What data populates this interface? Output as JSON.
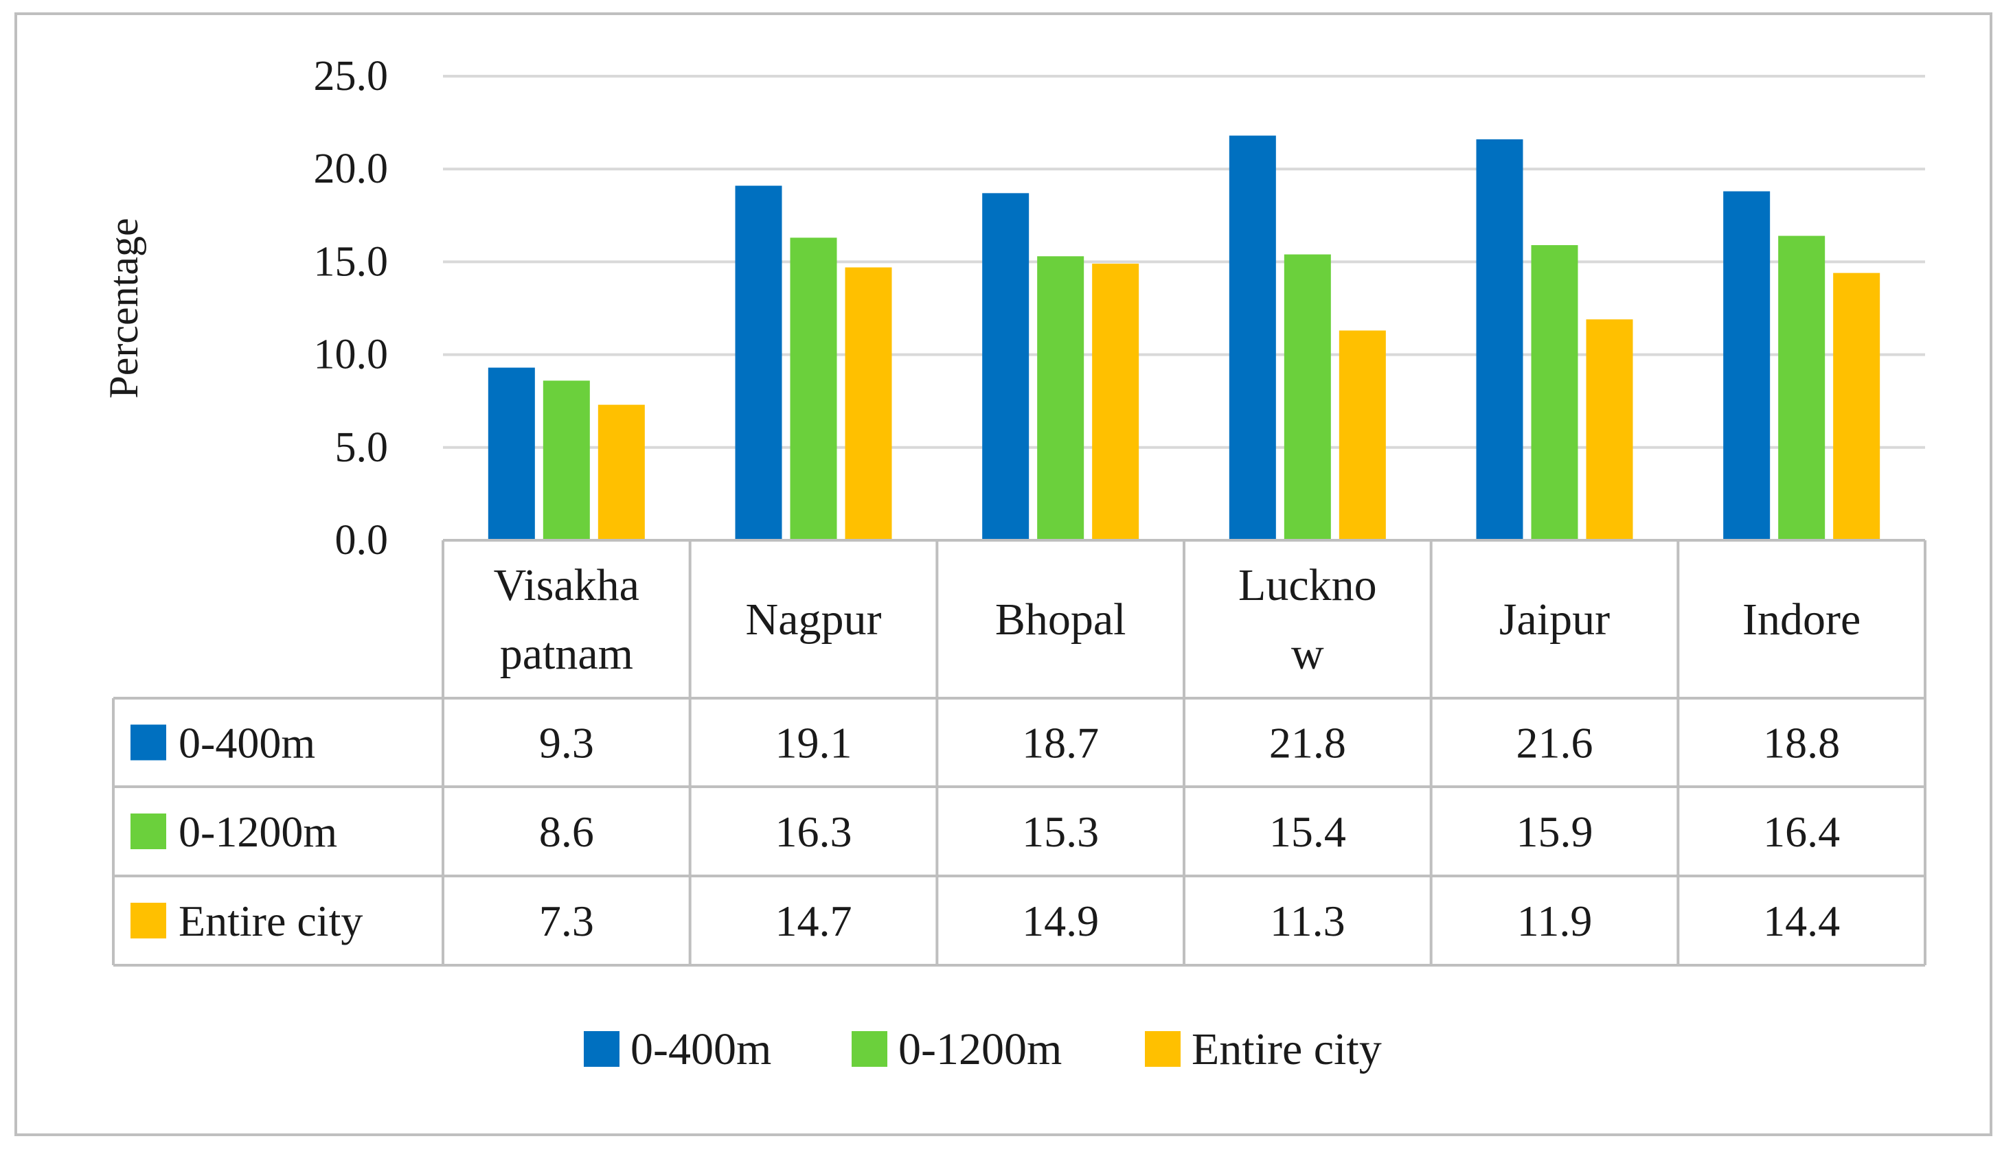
{
  "chart_data": {
    "type": "bar",
    "categories_display": [
      [
        "Visakha",
        "patnam"
      ],
      [
        "Nagpur"
      ],
      [
        "Bhopal"
      ],
      [
        "Luckno",
        "w"
      ],
      [
        "Jaipur"
      ],
      [
        "Indore"
      ]
    ],
    "series": [
      {
        "name": "0-400m",
        "color": "#0070C0",
        "values": [
          9.3,
          19.1,
          18.7,
          21.8,
          21.6,
          18.8
        ]
      },
      {
        "name": "0-1200m",
        "color": "#6BD03C",
        "values": [
          8.6,
          16.3,
          15.3,
          15.4,
          15.9,
          16.4
        ]
      },
      {
        "name": "Entire city",
        "color": "#FFC000",
        "values": [
          7.3,
          14.7,
          14.9,
          11.3,
          11.9,
          14.4
        ]
      }
    ],
    "ylabel": "Percentage",
    "ylim": [
      0,
      25
    ],
    "yticks": [
      "0.0",
      "5.0",
      "10.0",
      "15.0",
      "20.0",
      "25.0"
    ],
    "table": {
      "rows": [
        [
          "9.3",
          "19.1",
          "18.7",
          "21.8",
          "21.6",
          "18.8"
        ],
        [
          "8.6",
          "16.3",
          "15.3",
          "15.4",
          "15.9",
          "16.4"
        ],
        [
          "7.3",
          "14.7",
          "14.9",
          "11.3",
          "11.9",
          "14.4"
        ]
      ]
    },
    "grid": true,
    "legend_position": "bottom"
  }
}
